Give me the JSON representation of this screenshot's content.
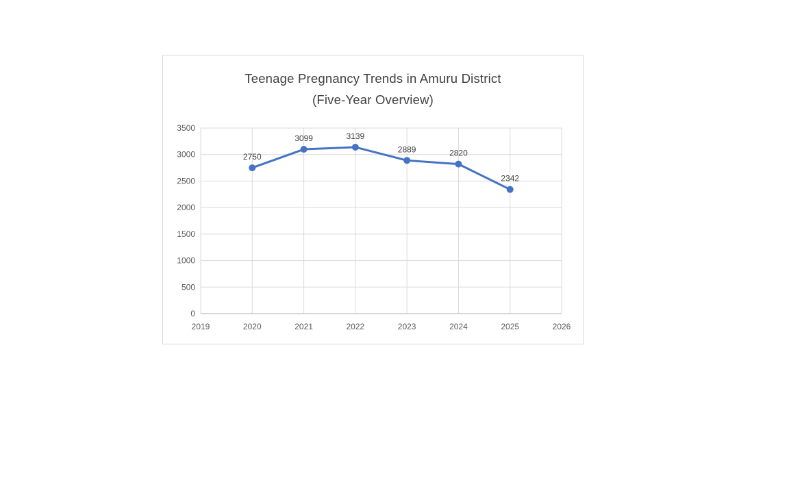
{
  "chart_data": {
    "type": "line",
    "title": "Teenage Pregnancy Trends in Amuru District",
    "subtitle": "(Five-Year Overview)",
    "x": [
      2020,
      2021,
      2022,
      2023,
      2024,
      2025
    ],
    "values": [
      2750,
      3099,
      3139,
      2889,
      2820,
      2342
    ],
    "data_labels": [
      "2750",
      "3099",
      "3139",
      "2889",
      "2820",
      "2342"
    ],
    "x_axis_ticks": [
      2019,
      2020,
      2021,
      2022,
      2023,
      2024,
      2025,
      2026
    ],
    "y_axis_ticks": [
      0,
      500,
      1000,
      1500,
      2000,
      2500,
      3000,
      3500
    ],
    "xlim": [
      2019,
      2026
    ],
    "ylim": [
      0,
      3500
    ],
    "grid": true,
    "legend": "none",
    "xlabel": "",
    "ylabel": "",
    "colors": {
      "line": "#4472C4",
      "marker": "#4472C4",
      "gridline": "#D9D9D9",
      "axis_line": "#BFBFBF",
      "tick_label": "#595959",
      "data_label": "#404040",
      "title": "#404040",
      "chart_border": "#D6D6D6",
      "background": "#FFFFFF"
    }
  }
}
